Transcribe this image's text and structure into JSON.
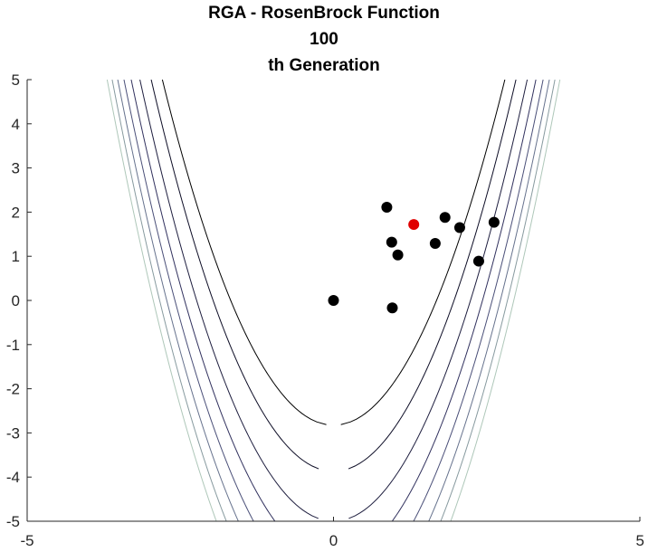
{
  "chart_data": {
    "type": "scatter",
    "title": [
      "RGA - RosenBrock Function",
      "100",
      "th Generation"
    ],
    "xlim": [
      -5,
      5
    ],
    "ylim": [
      -5,
      5
    ],
    "xticks": [
      "-5",
      "0",
      "5"
    ],
    "yticks": [
      "5",
      "4",
      "3",
      "2",
      "1",
      "0",
      "-1",
      "-2",
      "-3",
      "-4",
      "-5"
    ],
    "grid": false,
    "background_contours": "Rosenbrock function contour lines",
    "series": [
      {
        "color": "#000000",
        "points": [
          {
            "x": 0.0,
            "y": 0.0
          },
          {
            "x": 0.87,
            "y": 2.11
          },
          {
            "x": 0.95,
            "y": 1.32
          },
          {
            "x": 1.05,
            "y": 1.03
          },
          {
            "x": 0.96,
            "y": -0.17
          },
          {
            "x": 1.66,
            "y": 1.29
          },
          {
            "x": 1.82,
            "y": 1.88
          },
          {
            "x": 2.06,
            "y": 1.65
          },
          {
            "x": 2.37,
            "y": 0.89
          },
          {
            "x": 2.62,
            "y": 1.77
          }
        ]
      },
      {
        "color": "#e00000",
        "points": [
          {
            "x": 1.31,
            "y": 1.72
          }
        ]
      }
    ],
    "contour_levels": [
      800,
      1500,
      2500,
      3500,
      4500,
      5500,
      6500,
      7500
    ],
    "contour_colors": [
      "#000000",
      "#0d0d26",
      "#1e1e3f",
      "#31315e",
      "#4a4f78",
      "#66728d",
      "#879a9f",
      "#aec7b9"
    ]
  }
}
